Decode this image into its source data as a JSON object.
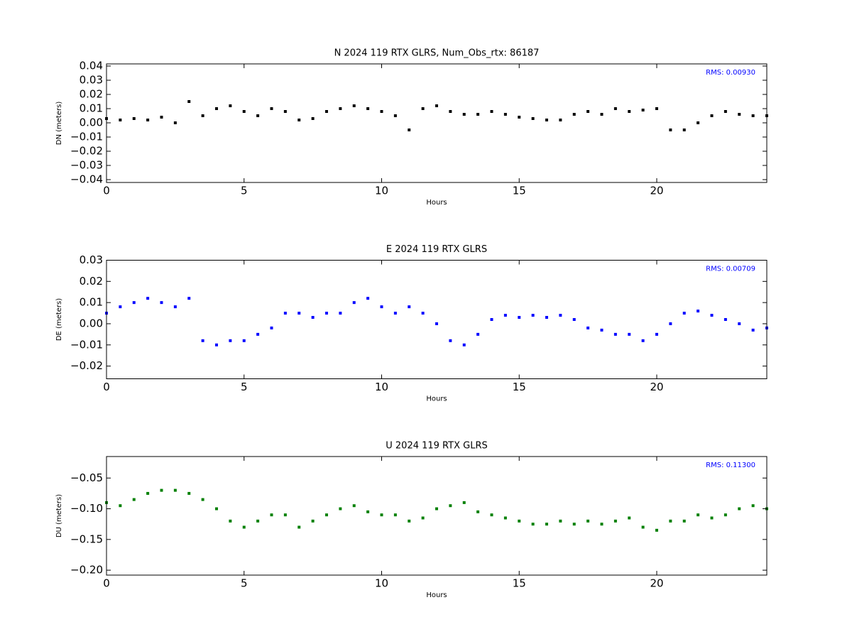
{
  "chart_data": [
    {
      "type": "scatter",
      "title": "N 2024 119 RTX  GLRS, Num_Obs_rtx: 86187",
      "xlabel": "Hours",
      "ylabel": "DN (meters)",
      "annotation": "RMS:  0.00930",
      "annotation_color": "#0000ff",
      "color": "#000000",
      "x": [
        0,
        0.5,
        1,
        1.5,
        2,
        2.5,
        3,
        3.5,
        4,
        4.5,
        5,
        5.5,
        6,
        6.5,
        7,
        7.5,
        8,
        8.5,
        9,
        9.5,
        10,
        10.5,
        11,
        11.5,
        12,
        12.5,
        13,
        13.5,
        14,
        14.5,
        15,
        15.5,
        16,
        16.5,
        17,
        17.5,
        18,
        18.5,
        19,
        19.5,
        20,
        20.5,
        21,
        21.5,
        22,
        22.5,
        23,
        23.5,
        24
      ],
      "values": [
        0.003,
        0.002,
        0.003,
        0.002,
        0.004,
        0.0,
        0.015,
        0.005,
        0.01,
        0.012,
        0.008,
        0.005,
        0.01,
        0.008,
        0.002,
        0.003,
        0.008,
        0.01,
        0.012,
        0.01,
        0.008,
        0.005,
        -0.005,
        0.01,
        0.012,
        0.008,
        0.006,
        0.006,
        0.008,
        0.006,
        0.004,
        0.003,
        0.002,
        0.002,
        0.006,
        0.008,
        0.006,
        0.01,
        0.008,
        0.009,
        0.01,
        -0.005,
        -0.005,
        0,
        0.005,
        0.008,
        0.006,
        0.005,
        0.005
      ],
      "xlim": [
        0,
        24
      ],
      "xticks": [
        0,
        5,
        10,
        15,
        20
      ],
      "ylim": [
        -0.042,
        0.0415
      ],
      "yticks": [
        {
          "value": -0.04,
          "label": "−0.04"
        },
        {
          "value": -0.03,
          "label": "−0.03"
        },
        {
          "value": -0.02,
          "label": "−0.02"
        },
        {
          "value": -0.01,
          "label": "−0.01"
        },
        {
          "value": 0,
          "label": "0.00"
        },
        0.01,
        0.02,
        0.03,
        0.04
      ]
    },
    {
      "type": "scatter",
      "title": "E 2024 119 RTX  GLRS",
      "xlabel": "Hours",
      "ylabel": "DE (meters)",
      "annotation": "RMS:  0.00709",
      "annotation_color": "#0000ff",
      "color": "#0000ff",
      "x": [
        0,
        0.5,
        1,
        1.5,
        2,
        2.5,
        3,
        3.5,
        4,
        4.5,
        5,
        5.5,
        6,
        6.5,
        7,
        7.5,
        8,
        8.5,
        9,
        9.5,
        10,
        10.5,
        11,
        11.5,
        12,
        12.5,
        13,
        13.5,
        14,
        14.5,
        15,
        15.5,
        16,
        16.5,
        17,
        17.5,
        18,
        18.5,
        19,
        19.5,
        20,
        20.5,
        21,
        21.5,
        22,
        22.5,
        23,
        23.5,
        24
      ],
      "values": [
        0.005,
        0.008,
        0.01,
        0.012,
        0.01,
        0.008,
        0.012,
        -0.008,
        -0.01,
        -0.008,
        -0.008,
        -0.005,
        -0.002,
        0.005,
        0.005,
        0.003,
        0.005,
        0.005,
        0.01,
        0.012,
        0.008,
        0.005,
        0.008,
        0.005,
        0.0,
        -0.008,
        -0.01,
        -0.005,
        0.002,
        0.004,
        0.003,
        0.004,
        0.003,
        0.004,
        0.002,
        -0.002,
        -0.003,
        -0.005,
        -0.005,
        -0.008,
        -0.005,
        0.0,
        0.005,
        0.006,
        0.004,
        0.002,
        0.0,
        -0.003,
        -0.002
      ],
      "xlim": [
        0,
        24
      ],
      "xticks": [
        0,
        5,
        10,
        15,
        20
      ],
      "ylim": [
        -0.026,
        0.03
      ],
      "yticks": [
        {
          "value": -0.02,
          "label": "−0.02"
        },
        {
          "value": -0.01,
          "label": "−0.01"
        },
        {
          "value": 0,
          "label": "0.00"
        },
        0.01,
        0.02,
        0.03
      ]
    },
    {
      "type": "scatter",
      "title": "U 2024 119 RTX  GLRS",
      "xlabel": "Hours",
      "ylabel": "DU (meters)",
      "annotation": "RMS:  0.11300",
      "annotation_color": "#0000ff",
      "color": "#008000",
      "x": [
        0,
        0.5,
        1,
        1.5,
        2,
        2.5,
        3,
        3.5,
        4,
        4.5,
        5,
        5.5,
        6,
        6.5,
        7,
        7.5,
        8,
        8.5,
        9,
        9.5,
        10,
        10.5,
        11,
        11.5,
        12,
        12.5,
        13,
        13.5,
        14,
        14.5,
        15,
        15.5,
        16,
        16.5,
        17,
        17.5,
        18,
        18.5,
        19,
        19.5,
        20,
        20.5,
        21,
        21.5,
        22,
        22.5,
        23,
        23.5,
        24
      ],
      "values": [
        -0.09,
        -0.095,
        -0.085,
        -0.075,
        -0.07,
        -0.07,
        -0.075,
        -0.085,
        -0.1,
        -0.12,
        -0.13,
        -0.12,
        -0.11,
        -0.11,
        -0.13,
        -0.12,
        -0.11,
        -0.1,
        -0.095,
        -0.105,
        -0.11,
        -0.11,
        -0.12,
        -0.115,
        -0.1,
        -0.095,
        -0.09,
        -0.105,
        -0.11,
        -0.115,
        -0.12,
        -0.125,
        -0.125,
        -0.12,
        -0.125,
        -0.12,
        -0.125,
        -0.12,
        -0.115,
        -0.13,
        -0.135,
        -0.12,
        -0.12,
        -0.11,
        -0.115,
        -0.11,
        -0.1,
        -0.095,
        -0.1
      ],
      "xlim": [
        0,
        24
      ],
      "xticks": [
        0,
        5,
        10,
        15,
        20
      ],
      "ylim": [
        -0.208,
        -0.015
      ],
      "yticks": [
        {
          "value": -0.2,
          "label": "−0.20"
        },
        {
          "value": -0.15,
          "label": "−0.15"
        },
        {
          "value": -0.1,
          "label": "−0.10"
        },
        {
          "value": -0.05,
          "label": "−0.05"
        }
      ]
    }
  ]
}
